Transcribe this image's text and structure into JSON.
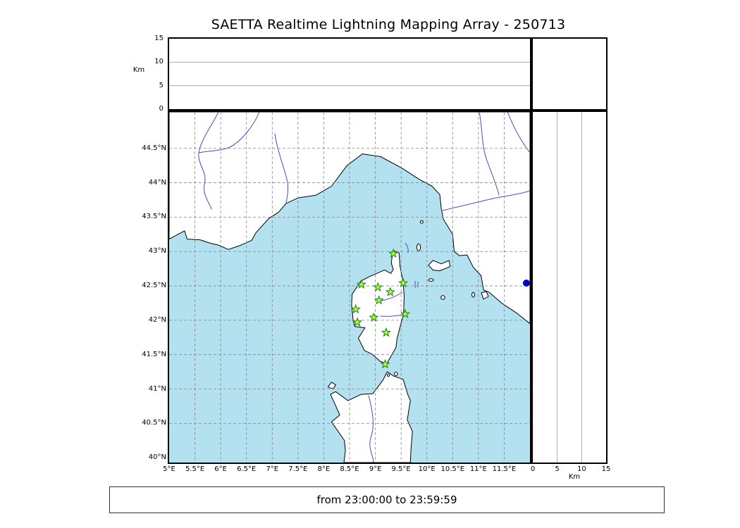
{
  "title": "SAETTA Realtime Lightning Mapping Array - 250713",
  "footer": {
    "text": "from 23:00:00 to 23:59:59"
  },
  "colors": {
    "sea": "#b3e1ef",
    "land": "#ffffff",
    "coast": "#000000",
    "river": "#4a4ac8",
    "grid": "#888888",
    "station_fill": "#adff2f",
    "station_stroke": "#1e7d1e",
    "event": "#0000cc"
  },
  "chart_data": {
    "type": "scatter",
    "title": "SAETTA Realtime Lightning Mapping Array - 250713",
    "footer": "from 23:00:00 to 23:59:59",
    "map_panel": {
      "xlim": [
        5,
        12
      ],
      "ylim": [
        39.93,
        45.03
      ],
      "grid": "dashed, 0.5 degree spacing",
      "lon_ticks": [
        {
          "label": "5°E",
          "value": 5
        },
        {
          "label": "5.5°E",
          "value": 5.5
        },
        {
          "label": "6°E",
          "value": 6
        },
        {
          "label": "6.5°E",
          "value": 6.5
        },
        {
          "label": "7°E",
          "value": 7
        },
        {
          "label": "7.5°E",
          "value": 7.5
        },
        {
          "label": "8°E",
          "value": 8
        },
        {
          "label": "8.5°E",
          "value": 8.5
        },
        {
          "label": "9°E",
          "value": 9
        },
        {
          "label": "9.5°E",
          "value": 9.5
        },
        {
          "label": "10°E",
          "value": 10
        },
        {
          "label": "10.5°E",
          "value": 10.5
        },
        {
          "label": "11°E",
          "value": 11
        },
        {
          "label": "11.5°E",
          "value": 11.5
        }
      ],
      "lat_ticks": [
        {
          "label": "44.5°N",
          "value": 44.5
        },
        {
          "label": "44°N",
          "value": 44
        },
        {
          "label": "43.5°N",
          "value": 43.5
        },
        {
          "label": "43°N",
          "value": 43
        },
        {
          "label": "42.5°N",
          "value": 42.5
        },
        {
          "label": "42°N",
          "value": 42
        },
        {
          "label": "41.5°N",
          "value": 41.5
        },
        {
          "label": "41°N",
          "value": 41
        },
        {
          "label": "40.5°N",
          "value": 40.5
        },
        {
          "label": "40°N",
          "value": 40
        }
      ],
      "series": [
        {
          "name": "stations",
          "marker": "star",
          "fill": "#adff2f",
          "stroke": "#1e7d1e",
          "points": [
            [
              9.35,
              42.97
            ],
            [
              8.73,
              42.52
            ],
            [
              9.05,
              42.48
            ],
            [
              9.54,
              42.54
            ],
            [
              9.29,
              42.41
            ],
            [
              9.07,
              42.29
            ],
            [
              8.62,
              42.16
            ],
            [
              8.97,
              42.04
            ],
            [
              8.65,
              41.97
            ],
            [
              9.58,
              42.09
            ],
            [
              9.21,
              41.82
            ],
            [
              9.19,
              41.36
            ]
          ]
        },
        {
          "name": "lightning_sources",
          "marker": "circle",
          "fill": "#0000cc",
          "points": [
            [
              11.93,
              42.54
            ]
          ]
        }
      ]
    },
    "alt_lon_panel": {
      "ylabel": "Km",
      "ylim": [
        0,
        15
      ],
      "ticks": [
        {
          "label": "0",
          "value": 0
        },
        {
          "label": "5",
          "value": 5
        },
        {
          "label": "10",
          "value": 10
        },
        {
          "label": "15",
          "value": 15
        }
      ],
      "gridlines": [
        5,
        10
      ],
      "points": []
    },
    "alt_lat_panel": {
      "xlabel": "Km",
      "xlim": [
        0,
        15
      ],
      "ticks": [
        {
          "label": "0",
          "value": 0
        },
        {
          "label": "5",
          "value": 5
        },
        {
          "label": "10",
          "value": 10
        },
        {
          "label": "15",
          "value": 15
        }
      ],
      "gridlines": [
        5,
        10
      ],
      "points": []
    }
  }
}
